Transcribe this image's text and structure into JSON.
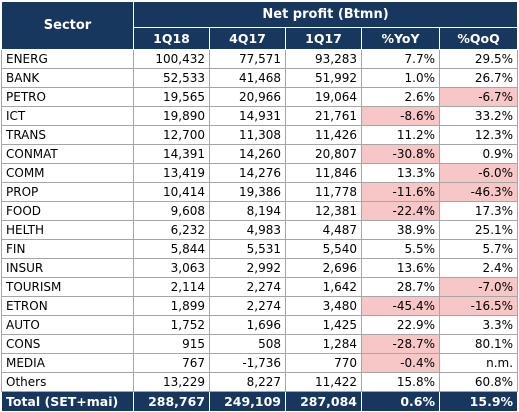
{
  "table": {
    "sector_header": "Sector",
    "group_header": "Net profit (Btmn)",
    "columns": [
      "1Q18",
      "4Q17",
      "1Q17",
      "%YoY",
      "%QoQ"
    ],
    "rows": [
      {
        "sector": "ENERG",
        "q1_18": "100,432",
        "q4_17": "77,571",
        "q1_17": "93,283",
        "yoy": "7.7%",
        "qoq": "29.5%",
        "yoy_neg": false,
        "qoq_neg": false
      },
      {
        "sector": "BANK",
        "q1_18": "52,533",
        "q4_17": "41,468",
        "q1_17": "51,992",
        "yoy": "1.0%",
        "qoq": "26.7%",
        "yoy_neg": false,
        "qoq_neg": false
      },
      {
        "sector": "PETRO",
        "q1_18": "19,565",
        "q4_17": "20,966",
        "q1_17": "19,064",
        "yoy": "2.6%",
        "qoq": "-6.7%",
        "yoy_neg": false,
        "qoq_neg": true
      },
      {
        "sector": "ICT",
        "q1_18": "19,890",
        "q4_17": "14,931",
        "q1_17": "21,761",
        "yoy": "-8.6%",
        "qoq": "33.2%",
        "yoy_neg": true,
        "qoq_neg": false
      },
      {
        "sector": "TRANS",
        "q1_18": "12,700",
        "q4_17": "11,308",
        "q1_17": "11,426",
        "yoy": "11.2%",
        "qoq": "12.3%",
        "yoy_neg": false,
        "qoq_neg": false
      },
      {
        "sector": "CONMAT",
        "q1_18": "14,391",
        "q4_17": "14,260",
        "q1_17": "20,807",
        "yoy": "-30.8%",
        "qoq": "0.9%",
        "yoy_neg": true,
        "qoq_neg": false
      },
      {
        "sector": "COMM",
        "q1_18": "13,419",
        "q4_17": "14,276",
        "q1_17": "11,846",
        "yoy": "13.3%",
        "qoq": "-6.0%",
        "yoy_neg": false,
        "qoq_neg": true
      },
      {
        "sector": "PROP",
        "q1_18": "10,414",
        "q4_17": "19,386",
        "q1_17": "11,778",
        "yoy": "-11.6%",
        "qoq": "-46.3%",
        "yoy_neg": true,
        "qoq_neg": true
      },
      {
        "sector": "FOOD",
        "q1_18": "9,608",
        "q4_17": "8,194",
        "q1_17": "12,381",
        "yoy": "-22.4%",
        "qoq": "17.3%",
        "yoy_neg": true,
        "qoq_neg": false
      },
      {
        "sector": "HELTH",
        "q1_18": "6,232",
        "q4_17": "4,983",
        "q1_17": "4,487",
        "yoy": "38.9%",
        "qoq": "25.1%",
        "yoy_neg": false,
        "qoq_neg": false
      },
      {
        "sector": "FIN",
        "q1_18": "5,844",
        "q4_17": "5,531",
        "q1_17": "5,540",
        "yoy": "5.5%",
        "qoq": "5.7%",
        "yoy_neg": false,
        "qoq_neg": false
      },
      {
        "sector": "INSUR",
        "q1_18": "3,063",
        "q4_17": "2,992",
        "q1_17": "2,696",
        "yoy": "13.6%",
        "qoq": "2.4%",
        "yoy_neg": false,
        "qoq_neg": false
      },
      {
        "sector": "TOURISM",
        "q1_18": "2,114",
        "q4_17": "2,274",
        "q1_17": "1,642",
        "yoy": "28.7%",
        "qoq": "-7.0%",
        "yoy_neg": false,
        "qoq_neg": true
      },
      {
        "sector": "ETRON",
        "q1_18": "1,899",
        "q4_17": "2,274",
        "q1_17": "3,480",
        "yoy": "-45.4%",
        "qoq": "-16.5%",
        "yoy_neg": true,
        "qoq_neg": true
      },
      {
        "sector": "AUTO",
        "q1_18": "1,752",
        "q4_17": "1,696",
        "q1_17": "1,425",
        "yoy": "22.9%",
        "qoq": "3.3%",
        "yoy_neg": false,
        "qoq_neg": false
      },
      {
        "sector": "CONS",
        "q1_18": "915",
        "q4_17": "508",
        "q1_17": "1,284",
        "yoy": "-28.7%",
        "qoq": "80.1%",
        "yoy_neg": true,
        "qoq_neg": false
      },
      {
        "sector": "MEDIA",
        "q1_18": "767",
        "q4_17": "-1,736",
        "q1_17": "770",
        "yoy": "-0.4%",
        "qoq": "n.m.",
        "yoy_neg": true,
        "qoq_neg": false
      },
      {
        "sector": "Others",
        "q1_18": "13,229",
        "q4_17": "8,227",
        "q1_17": "11,422",
        "yoy": "15.8%",
        "qoq": "60.8%",
        "yoy_neg": false,
        "qoq_neg": false
      }
    ],
    "total": {
      "sector": "Total (SET+mai)",
      "q1_18": "288,767",
      "q4_17": "249,109",
      "q1_17": "287,084",
      "yoy": "0.6%",
      "qoq": "15.9%"
    },
    "colors": {
      "header_bg": "#17375e",
      "negative_highlight": "#f7c6c6",
      "grid": "#a6a6a6"
    }
  }
}
